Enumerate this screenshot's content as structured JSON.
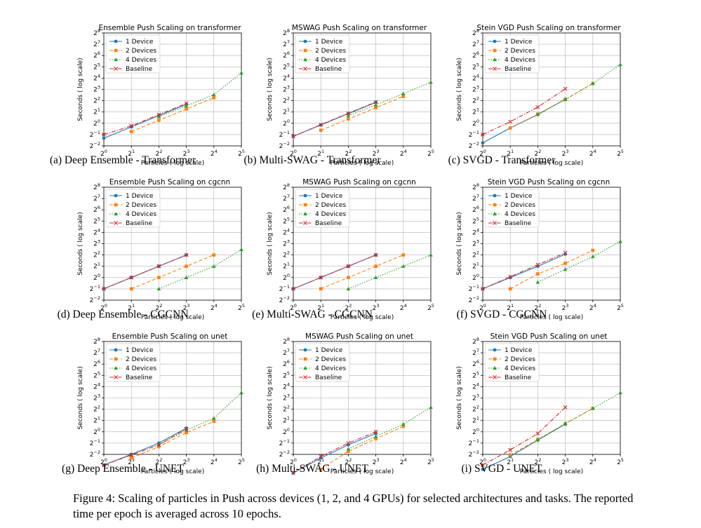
{
  "figure_caption": "Figure 4: Scaling of particles in Push across devices (1, 2, and 4 GPUs) for selected architectures and tasks. The reported time per epoch is averaged across 10 epochs.",
  "legend": [
    "1 Device",
    "2 Devices",
    "4 Devices",
    "Baseline"
  ],
  "series_styles": [
    {
      "name": "1 Device",
      "color": "#1f77b4",
      "dash": "",
      "marker": "circle"
    },
    {
      "name": "2 Devices",
      "color": "#ff7f0e",
      "dash": "5,3",
      "marker": "square"
    },
    {
      "name": "4 Devices",
      "color": "#2ca02c",
      "dash": "1.5,2",
      "marker": "triangle"
    },
    {
      "name": "Baseline",
      "color": "#d62728",
      "dash": "6,2,1.5,2",
      "marker": "x"
    }
  ],
  "chart_data": [
    {
      "type": "line",
      "log_scale": true,
      "grid": true,
      "legend_position": "top-left",
      "title": "Ensemble Push Scaling on transformer",
      "xlabel": "Particles ( log scale)",
      "ylabel": "Seconds ( log scale)",
      "caption": "(a) Deep Ensemble - Transformer",
      "xlim": [
        1,
        32
      ],
      "ylim": [
        0.25,
        256
      ],
      "series": [
        {
          "name": "1 Device",
          "x": [
            1,
            2,
            4,
            8
          ],
          "y": [
            0.4,
            0.8,
            1.6,
            3.2
          ]
        },
        {
          "name": "2 Devices",
          "x": [
            2,
            4,
            8,
            16
          ],
          "y": [
            0.6,
            1.2,
            2.4,
            4.8
          ]
        },
        {
          "name": "4 Devices",
          "x": [
            4,
            8,
            16,
            32
          ],
          "y": [
            1.5,
            2.9,
            5.8,
            22
          ]
        },
        {
          "name": "Baseline",
          "x": [
            1,
            2,
            4,
            8
          ],
          "y": [
            0.5,
            0.85,
            1.7,
            3.4
          ]
        }
      ]
    },
    {
      "type": "line",
      "log_scale": true,
      "grid": true,
      "legend_position": "top-left",
      "title": "MSWAG Push Scaling on transformer",
      "xlabel": "Particles ( log scale)",
      "ylabel": "Seconds ( log scale)",
      "caption": "(b) Multi-SWAG - Transformer",
      "xlim": [
        1,
        32
      ],
      "ylim": [
        0.25,
        256
      ],
      "series": [
        {
          "name": "1 Device",
          "x": [
            1,
            2,
            4,
            8
          ],
          "y": [
            0.45,
            0.9,
            1.8,
            3.6
          ]
        },
        {
          "name": "2 Devices",
          "x": [
            2,
            4,
            8,
            16
          ],
          "y": [
            0.65,
            1.3,
            2.6,
            5.2
          ]
        },
        {
          "name": "4 Devices",
          "x": [
            4,
            8,
            16,
            32
          ],
          "y": [
            1.6,
            3.1,
            6.2,
            12.4
          ]
        },
        {
          "name": "Baseline",
          "x": [
            1,
            2,
            4,
            8
          ],
          "y": [
            0.45,
            0.92,
            1.85,
            3.7
          ]
        }
      ]
    },
    {
      "type": "line",
      "log_scale": true,
      "grid": true,
      "legend_position": "top-left",
      "title": "Stein VGD Push Scaling on transformer",
      "xlabel": "Particles ( log scale)",
      "ylabel": "Seconds ( log scale)",
      "caption": "(c) SVGD - Transformer",
      "xlim": [
        1,
        32
      ],
      "ylim": [
        0.25,
        256
      ],
      "series": [
        {
          "name": "1 Device",
          "x": [
            1,
            2,
            4,
            8
          ],
          "y": [
            0.3,
            0.75,
            1.7,
            4.4
          ]
        },
        {
          "name": "2 Devices",
          "x": [
            2,
            4,
            8,
            16
          ],
          "y": [
            0.75,
            1.75,
            4.3,
            11.5
          ]
        },
        {
          "name": "4 Devices",
          "x": [
            4,
            8,
            16,
            32
          ],
          "y": [
            1.75,
            4.3,
            11.5,
            37
          ]
        },
        {
          "name": "Baseline",
          "x": [
            1,
            2,
            4,
            8
          ],
          "y": [
            0.5,
            1.1,
            2.7,
            8.3
          ]
        }
      ]
    },
    {
      "type": "line",
      "log_scale": true,
      "grid": true,
      "legend_position": "top-left",
      "title": "Ensemble Push Scaling on cgcnn",
      "xlabel": "Particles ( log scale)",
      "ylabel": "Seconds ( log scale)",
      "caption": "(d) Deep Ensemble - CGCNN",
      "xlim": [
        1,
        32
      ],
      "ylim": [
        0.25,
        256
      ],
      "series": [
        {
          "name": "1 Device",
          "x": [
            1,
            2,
            4,
            8
          ],
          "y": [
            0.5,
            1.0,
            2.0,
            4.0
          ]
        },
        {
          "name": "2 Devices",
          "x": [
            2,
            4,
            8,
            16
          ],
          "y": [
            0.5,
            1.0,
            2.0,
            4.0
          ]
        },
        {
          "name": "4 Devices",
          "x": [
            4,
            8,
            16,
            32
          ],
          "y": [
            0.5,
            1.0,
            2.0,
            5.6
          ]
        },
        {
          "name": "Baseline",
          "x": [
            1,
            2,
            4,
            8
          ],
          "y": [
            0.5,
            1.0,
            2.0,
            4.0
          ]
        }
      ]
    },
    {
      "type": "line",
      "log_scale": true,
      "grid": true,
      "legend_position": "top-left",
      "title": "MSWAG Push Scaling on cgcnn",
      "xlabel": "Particles ( log scale)",
      "ylabel": "Seconds ( log scale)",
      "caption": "(e) Multi-SWAG - CGCNN",
      "xlim": [
        1,
        32
      ],
      "ylim": [
        0.25,
        256
      ],
      "series": [
        {
          "name": "1 Device",
          "x": [
            1,
            2,
            4,
            8
          ],
          "y": [
            0.5,
            1.0,
            2.0,
            4.0
          ]
        },
        {
          "name": "2 Devices",
          "x": [
            2,
            4,
            8,
            16
          ],
          "y": [
            0.5,
            1.0,
            2.0,
            4.0
          ]
        },
        {
          "name": "4 Devices",
          "x": [
            4,
            8,
            16,
            32
          ],
          "y": [
            0.5,
            1.0,
            2.0,
            4.0
          ]
        },
        {
          "name": "Baseline",
          "x": [
            1,
            2,
            4,
            8
          ],
          "y": [
            0.5,
            1.0,
            2.0,
            4.0
          ]
        }
      ]
    },
    {
      "type": "line",
      "log_scale": true,
      "grid": true,
      "legend_position": "top-left",
      "title": "Stein VGD Push Scaling on cgcnn",
      "xlabel": "Particles ( log scale)",
      "ylabel": "Seconds ( log scale)",
      "caption": "(f) SVGD - CGCNN",
      "xlim": [
        1,
        32
      ],
      "ylim": [
        0.25,
        256
      ],
      "series": [
        {
          "name": "1 Device",
          "x": [
            1,
            2,
            4,
            8
          ],
          "y": [
            0.5,
            1.0,
            2.0,
            4.2
          ]
        },
        {
          "name": "2 Devices",
          "x": [
            2,
            4,
            8,
            16
          ],
          "y": [
            0.5,
            1.25,
            2.4,
            5.3
          ]
        },
        {
          "name": "4 Devices",
          "x": [
            4,
            8,
            16,
            32
          ],
          "y": [
            0.75,
            1.65,
            3.6,
            9.2
          ]
        },
        {
          "name": "Baseline",
          "x": [
            1,
            2,
            4,
            8
          ],
          "y": [
            0.5,
            1.05,
            2.2,
            4.6
          ]
        }
      ]
    },
    {
      "type": "line",
      "log_scale": true,
      "grid": true,
      "legend_position": "top-left",
      "title": "Ensemble Push Scaling on unet",
      "xlabel": "Particles ( log scale)",
      "ylabel": "Seconds ( log scale)",
      "caption": "(g) Deep Ensemble - UNET",
      "xlim": [
        1,
        32
      ],
      "ylim": [
        0.25,
        256
      ],
      "series": [
        {
          "name": "1 Device",
          "x": [
            1,
            2,
            4,
            8
          ],
          "y": [
            0.13,
            0.25,
            0.5,
            1.25
          ]
        },
        {
          "name": "2 Devices",
          "x": [
            2,
            4,
            8,
            16
          ],
          "y": [
            0.2,
            0.4,
            0.95,
            1.9
          ]
        },
        {
          "name": "4 Devices",
          "x": [
            4,
            8,
            16,
            32
          ],
          "y": [
            0.45,
            1.1,
            2.3,
            11
          ]
        },
        {
          "name": "Baseline",
          "x": [
            1,
            2,
            4,
            8
          ],
          "y": [
            0.13,
            0.24,
            0.45,
            1.2
          ]
        }
      ]
    },
    {
      "type": "line",
      "log_scale": true,
      "grid": true,
      "legend_position": "top-left",
      "title": "MSWAG Push Scaling on unet",
      "xlabel": "Particles ( log scale)",
      "ylabel": "Seconds ( log scale)",
      "caption": "(h) Multi-SWAG - UNET",
      "xlim": [
        1,
        32
      ],
      "ylim": [
        0.25,
        256
      ],
      "series": [
        {
          "name": "1 Device",
          "x": [
            1,
            2,
            4,
            8
          ],
          "y": [
            0.08,
            0.2,
            0.45,
            0.9
          ]
        },
        {
          "name": "2 Devices",
          "x": [
            2,
            4,
            8,
            16
          ],
          "y": [
            0.1,
            0.3,
            0.65,
            1.4
          ]
        },
        {
          "name": "4 Devices",
          "x": [
            4,
            8,
            16,
            32
          ],
          "y": [
            0.35,
            0.75,
            1.6,
            4.5
          ]
        },
        {
          "name": "Baseline",
          "x": [
            1,
            2,
            4,
            8
          ],
          "y": [
            0.08,
            0.22,
            0.5,
            1.0
          ]
        }
      ]
    },
    {
      "type": "line",
      "log_scale": true,
      "grid": true,
      "legend_position": "top-left",
      "title": "Stein VGD Push Scaling on unet",
      "xlabel": "Particles ( log scale)",
      "ylabel": "Seconds ( log scale)",
      "caption": "(i) SVGD - UNET",
      "xlim": [
        1,
        32
      ],
      "ylim": [
        0.25,
        256
      ],
      "series": [
        {
          "name": "1 Device",
          "x": [
            1,
            2,
            4,
            8
          ],
          "y": [
            0.1,
            0.22,
            0.6,
            1.6
          ]
        },
        {
          "name": "2 Devices",
          "x": [
            2,
            4,
            8,
            16
          ],
          "y": [
            0.24,
            0.62,
            1.65,
            4.2
          ]
        },
        {
          "name": "4 Devices",
          "x": [
            4,
            8,
            16,
            32
          ],
          "y": [
            0.62,
            1.65,
            4.2,
            11
          ]
        },
        {
          "name": "Baseline",
          "x": [
            1,
            2,
            4,
            8
          ],
          "y": [
            0.13,
            0.33,
            0.9,
            4.5
          ]
        }
      ]
    }
  ]
}
